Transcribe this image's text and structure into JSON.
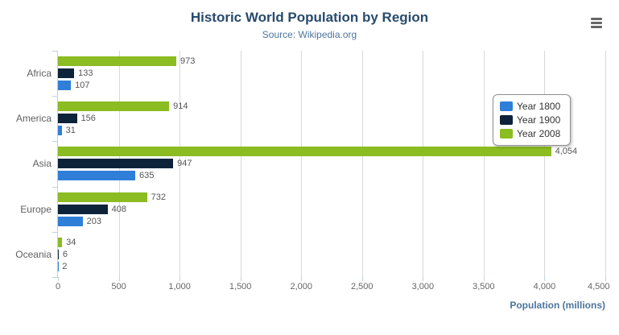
{
  "header": {
    "title": "Historic World Population by Region",
    "subtitle": "Source: Wikipedia.org"
  },
  "context_menu": {
    "icon": "hamburger-icon",
    "tooltip": "Chart context menu"
  },
  "chart_data": {
    "type": "bar",
    "orientation": "horizontal",
    "title": "Historic World Population by Region",
    "subtitle": "Source: Wikipedia.org",
    "categories": [
      "Africa",
      "America",
      "Asia",
      "Europe",
      "Oceania"
    ],
    "series": [
      {
        "name": "Year 1800",
        "color": "#2f7ed8",
        "values": [
          107,
          31,
          635,
          203,
          2
        ]
      },
      {
        "name": "Year 1900",
        "color": "#0d233a",
        "values": [
          133,
          156,
          947,
          408,
          6
        ]
      },
      {
        "name": "Year 2008",
        "color": "#8bbc21",
        "values": [
          973,
          914,
          4054,
          732,
          34
        ]
      }
    ],
    "bar_order_top_to_bottom": [
      "Year 2008",
      "Year 1900",
      "Year 1800"
    ],
    "xlabel": "Population (millions)",
    "ylabel": "",
    "xlim": [
      0,
      4500
    ],
    "x_ticks": [
      0,
      500,
      1000,
      1500,
      2000,
      2500,
      3000,
      3500,
      4000,
      4500
    ],
    "grid": true,
    "legend_position": "right",
    "data_labels": true
  },
  "colors": {
    "title": "#274b6d",
    "subtitle": "#4d759e",
    "axis_title": "#4d759e",
    "tick_label": "#666666",
    "grid_line": "#d8d8d8",
    "axis_line": "#c0d0e0",
    "value_label": "#555555"
  }
}
